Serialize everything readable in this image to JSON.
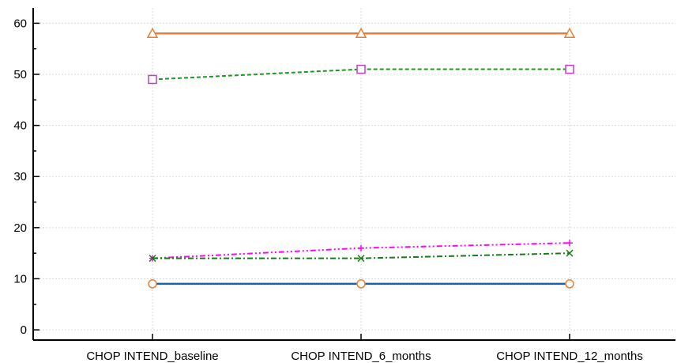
{
  "chart_data": {
    "type": "line",
    "categories": [
      "CHOP INTEND_baseline",
      "CHOP INTEND_6_months",
      "CHOP INTEND_12_months"
    ],
    "ylim": [
      -2,
      63
    ],
    "yticks": [
      0,
      10,
      20,
      30,
      40,
      50,
      60
    ],
    "grid": true,
    "legend": "none",
    "series": [
      {
        "values": [
          58,
          58,
          58
        ],
        "color": "#ed7d31",
        "marker": "triangle",
        "line_style": "solid"
      },
      {
        "values": [
          49,
          51,
          51
        ],
        "color": "#1a9a1a",
        "marker": "square",
        "marker_color": "#c040c0",
        "line_style": "dashed"
      },
      {
        "values": [
          14,
          16,
          17
        ],
        "color": "#ff00ff",
        "marker": "plus",
        "line_style": "dashdotdot"
      },
      {
        "values": [
          14,
          14,
          15
        ],
        "color": "#1a7a1a",
        "marker": "x",
        "line_style": "dashdot"
      },
      {
        "values": [
          9,
          9,
          9
        ],
        "color": "#1f5fa8",
        "marker": "circle",
        "marker_color": "#ed7d31",
        "line_style": "solid"
      }
    ]
  }
}
